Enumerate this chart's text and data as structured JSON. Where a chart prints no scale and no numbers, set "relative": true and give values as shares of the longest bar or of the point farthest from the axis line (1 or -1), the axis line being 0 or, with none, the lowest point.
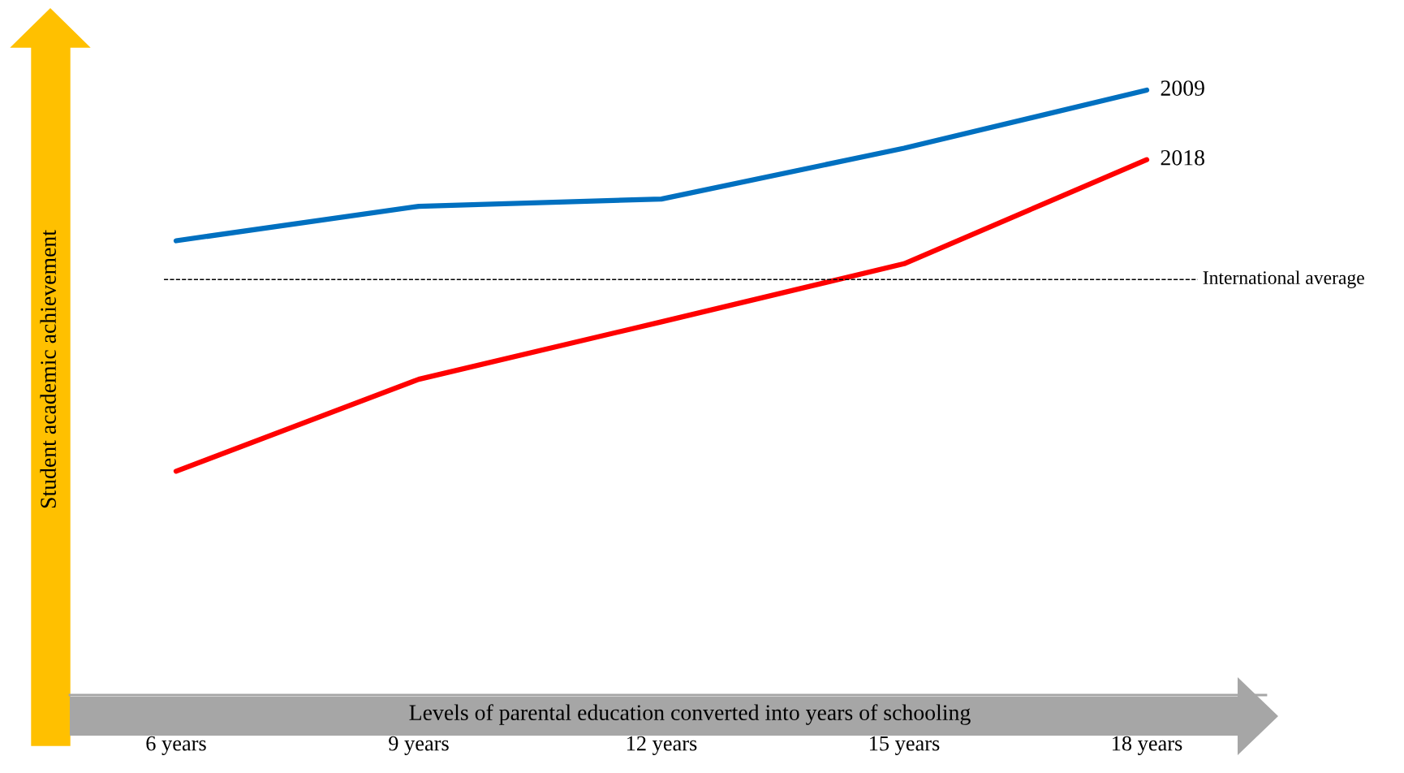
{
  "chart_data": {
    "type": "line",
    "relative": true,
    "xlabel": "Levels of parental education converted into years of schooling",
    "ylabel": "Student academic achievement",
    "categories": [
      "6 years",
      "9 years",
      "12 years",
      "15 years",
      "18 years"
    ],
    "series": [
      {
        "name": "2009",
        "color": "#0070c0",
        "values": [
          0.751,
          0.808,
          0.82,
          0.904,
          1.0
        ]
      },
      {
        "name": "2018",
        "color": "#ff0000",
        "values": [
          0.37,
          0.522,
          0.617,
          0.713,
          0.885
        ]
      }
    ],
    "ref_lines": [
      {
        "axis": "y",
        "value": 0.687,
        "label": "International average",
        "color": "#000000",
        "line_style": "dashed"
      }
    ],
    "marker": "none",
    "line_style": "solid",
    "grid": false,
    "legend": false
  }
}
